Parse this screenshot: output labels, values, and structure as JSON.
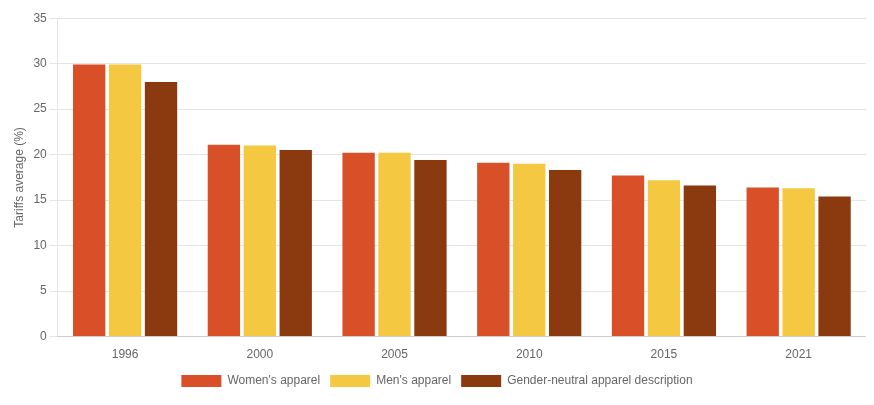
{
  "chart_data": {
    "type": "bar",
    "categories": [
      "1996",
      "2000",
      "2005",
      "2010",
      "2015",
      "2021"
    ],
    "series": [
      {
        "name": "Women's apparel",
        "color": "#D94F27",
        "values": [
          29.9,
          21.1,
          20.2,
          19.1,
          17.7,
          16.4
        ]
      },
      {
        "name": "Men's apparel",
        "color": "#F5C842",
        "values": [
          29.9,
          21.0,
          20.2,
          19.0,
          17.2,
          16.3
        ]
      },
      {
        "name": "Gender-neutral apparel description",
        "color": "#8B3A10",
        "values": [
          28.0,
          20.5,
          19.4,
          18.3,
          16.6,
          15.4
        ]
      }
    ],
    "ylabel": "Tariffs average (%)",
    "ylim": [
      0,
      35
    ],
    "yticks": [
      0,
      5,
      10,
      15,
      20,
      25,
      30,
      35
    ],
    "grid": true,
    "legend": "bottom"
  }
}
